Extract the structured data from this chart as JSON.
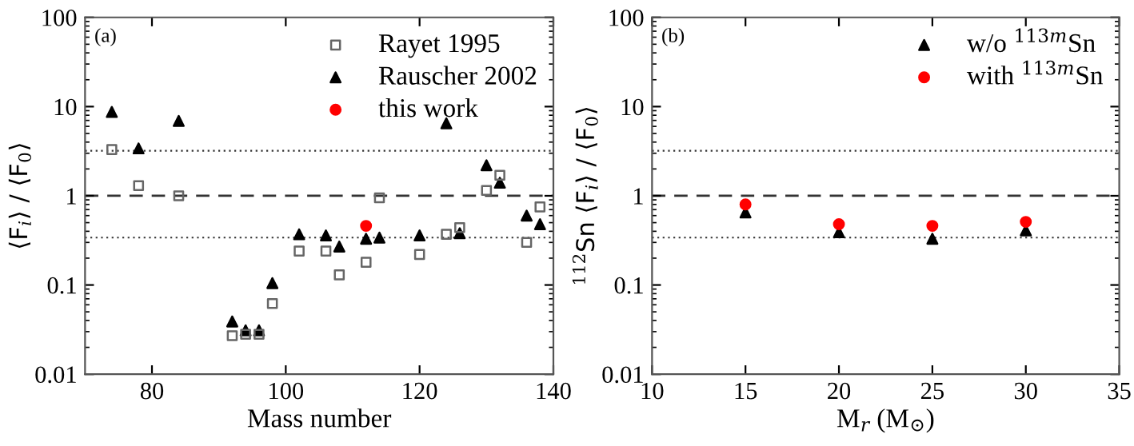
{
  "chart_data": [
    {
      "type": "scatter",
      "xlabel": "Mass number",
      "ylabel": "⟨F$_{i}$⟩ / ⟨F$_{0}$⟩",
      "annotations": [
        "(a)"
      ],
      "log": "y",
      "xlim": [
        70,
        140
      ],
      "xticks": [
        80,
        100,
        120,
        140
      ],
      "ylim": [
        0.01,
        100
      ],
      "yticks": [
        0.01,
        0.1,
        1,
        10,
        100
      ],
      "legend": "top right",
      "grid": false,
      "series": [
        {
          "name": "Rayet 1995",
          "color": "#666666",
          "marker": "square",
          "x": [
            74,
            78,
            84,
            92,
            94,
            96,
            98,
            102,
            106,
            108,
            112,
            114,
            120,
            124,
            126,
            130,
            132,
            136,
            138
          ],
          "values": [
            3.3,
            1.3,
            1.0,
            0.027,
            0.028,
            0.028,
            0.062,
            0.24,
            0.24,
            0.13,
            0.18,
            0.95,
            0.22,
            0.37,
            0.44,
            1.15,
            1.7,
            0.3,
            0.75
          ]
        },
        {
          "name": "Rauscher 2002",
          "color": "#000000",
          "marker": "triangle",
          "x": [
            74,
            78,
            84,
            92,
            94,
            96,
            98,
            102,
            106,
            108,
            112,
            114,
            120,
            124,
            126,
            130,
            132,
            136,
            138
          ],
          "values": [
            8.7,
            3.4,
            6.9,
            0.039,
            0.031,
            0.031,
            0.105,
            0.37,
            0.36,
            0.27,
            0.33,
            0.34,
            0.36,
            6.5,
            0.38,
            2.2,
            1.4,
            0.6,
            0.48
          ]
        },
        {
          "name": "this work",
          "color": "#ff0000",
          "marker": "circle",
          "x": [
            112
          ],
          "values": [
            0.46
          ]
        }
      ],
      "ref_lines": [
        {
          "axis": "y",
          "value": 3.2,
          "line_style": "dotted"
        },
        {
          "axis": "y",
          "value": 1,
          "line_style": "dashed"
        },
        {
          "axis": "y",
          "value": 0.34,
          "line_style": "dotted"
        }
      ]
    },
    {
      "type": "scatter",
      "xlabel": "M$_{r}$ (M$_{⊙}$)",
      "ylabel": "$^{112}$Sn ⟨F$_{i}$⟩ / ⟨F$_{0}$⟩",
      "annotations": [
        "(b)"
      ],
      "log": "y",
      "xlim": [
        10,
        35
      ],
      "xticks": [
        10,
        15,
        20,
        25,
        30,
        35
      ],
      "ylim": [
        0.01,
        100
      ],
      "yticks": [
        0.01,
        0.1,
        1,
        10,
        100
      ],
      "legend": "top right",
      "grid": false,
      "series": [
        {
          "name": "w/o $^{113m}$Sn",
          "color": "#000000",
          "marker": "triangle",
          "x": [
            15,
            20,
            25,
            30
          ],
          "values": [
            0.65,
            0.39,
            0.33,
            0.41
          ]
        },
        {
          "name": "with $^{113m}$Sn",
          "color": "#ff0000",
          "marker": "circle",
          "x": [
            15,
            20,
            25,
            30
          ],
          "values": [
            0.8,
            0.48,
            0.46,
            0.51
          ]
        }
      ],
      "ref_lines": [
        {
          "axis": "y",
          "value": 3.2,
          "line_style": "dotted"
        },
        {
          "axis": "y",
          "value": 1,
          "line_style": "dashed"
        },
        {
          "axis": "y",
          "value": 0.34,
          "line_style": "dotted"
        }
      ]
    }
  ]
}
